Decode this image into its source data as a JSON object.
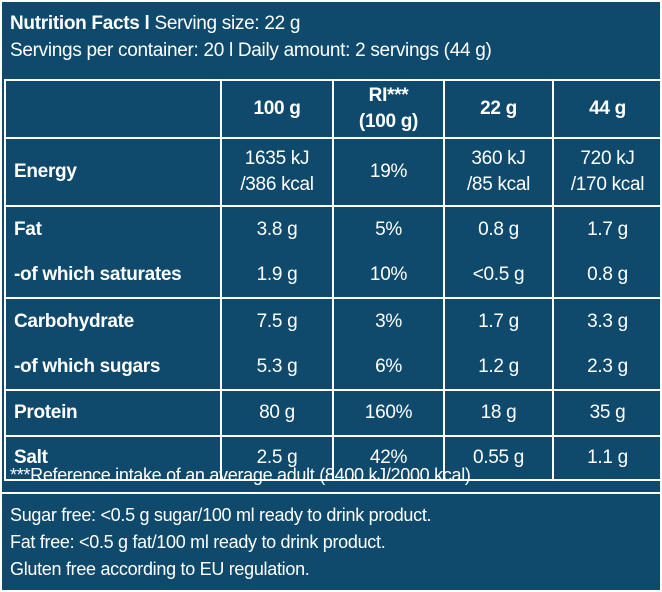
{
  "header": {
    "line1_bold": "Nutrition Facts l",
    "line1_rest": " Serving size: 22 g",
    "line2": "Servings per container: 20 l Daily amount: 2 servings (44 g)"
  },
  "table": {
    "columns": [
      {
        "line1": "100 g",
        "line2": ""
      },
      {
        "line1": "RI***",
        "line2": "(100 g)"
      },
      {
        "line1": "22 g",
        "line2": ""
      },
      {
        "line1": "44 g",
        "line2": ""
      }
    ],
    "energy": {
      "label": "Energy",
      "cells": [
        {
          "line1": "1635 kJ",
          "line2": "/386 kcal"
        },
        {
          "line1": "19%",
          "line2": ""
        },
        {
          "line1": "360 kJ",
          "line2": "/85 kcal"
        },
        {
          "line1": "720 kJ",
          "line2": "/170 kcal"
        }
      ]
    },
    "fat": {
      "label": "Fat",
      "sub_label": "-of which saturates",
      "values": [
        "3.8 g",
        "5%",
        "0.8 g",
        "1.7 g"
      ],
      "sub_values": [
        "1.9 g",
        "10%",
        "<0.5 g",
        "0.8 g"
      ]
    },
    "carbohydrate": {
      "label": "Carbohydrate",
      "sub_label": "-of which sugars",
      "values": [
        "7.5 g",
        "3%",
        "1.7 g",
        "3.3 g"
      ],
      "sub_values": [
        "5.3 g",
        "6%",
        "1.2 g",
        "2.3 g"
      ]
    },
    "protein": {
      "label": "Protein",
      "values": [
        "80 g",
        "160%",
        "18 g",
        "35 g"
      ]
    },
    "salt": {
      "label": "Salt",
      "values": [
        "2.5 g",
        "42%",
        "0.55 g",
        "1.1 g"
      ]
    }
  },
  "footnote": "***Reference intake of an average adult (8400 kJ/2000 kcal).",
  "notes": [
    "Sugar free: <0.5 g sugar/100 ml ready to drink product.",
    "Fat free: <0.5 g fat/100 ml ready to drink product.",
    "Gluten free according to EU regulation."
  ],
  "colors": {
    "background": "#0f4a6d",
    "text": "#ffffff",
    "rules": "#ffffff"
  }
}
